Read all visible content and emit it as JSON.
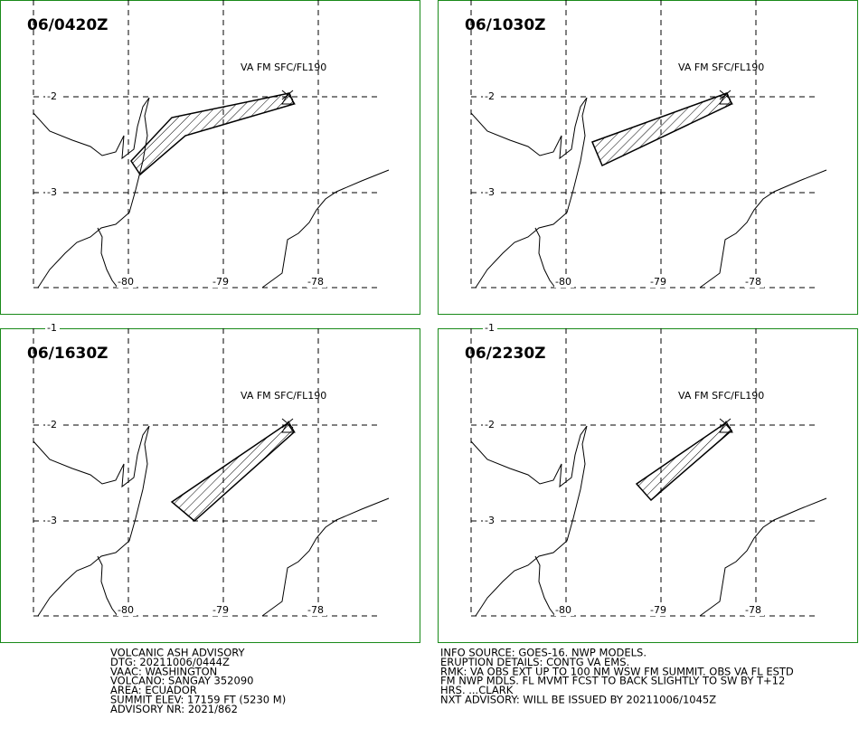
{
  "panels": [
    {
      "time": "06/0420Z",
      "label": "VA FM SFC/FL190",
      "lat_labels": [
        "-2",
        "-3"
      ],
      "lon_labels": [
        "-80",
        "-79",
        "-78"
      ]
    },
    {
      "time": "06/1030Z",
      "label": "VA FM SFC/FL190",
      "lat_labels": [
        "-2",
        "-3"
      ],
      "lon_labels": [
        "-80",
        "-79",
        "-78"
      ]
    },
    {
      "time": "06/1630Z",
      "label": "VA FM SFC/FL190",
      "lat_labels": [
        "-1",
        "-2",
        "-3"
      ],
      "lon_labels": [
        "-80",
        "-79",
        "-78"
      ]
    },
    {
      "time": "06/2230Z",
      "label": "VA FM SFC/FL190",
      "lat_labels": [
        "-1",
        "-2",
        "-3"
      ],
      "lon_labels": [
        "-80",
        "-79",
        "-78"
      ]
    }
  ],
  "advisory": {
    "left": [
      "VOLCANIC ASH ADVISORY",
      "DTG: 20211006/0444Z",
      "VAAC: WASHINGTON",
      "VOLCANO: SANGAY 352090",
      "AREA: ECUADOR",
      "SUMMIT ELEV: 17159 FT (5230 M)",
      "ADVISORY NR: 2021/862"
    ],
    "right": [
      "INFO SOURCE: GOES-16. NWP MODELS.",
      "ERUPTION DETAILS: CONTG VA EMS.",
      "RMK: VA OBS EXT UP TO 100 NM WSW FM SUMMIT. OBS VA FL ESTD",
      "FM NWP MDLS. FL MVMT FCST TO BACK SLIGHTLY TO SW BY T+12",
      "HRS. ...CLARK",
      "NXT ADVISORY: WILL BE ISSUED BY 20211006/1045Z"
    ]
  }
}
